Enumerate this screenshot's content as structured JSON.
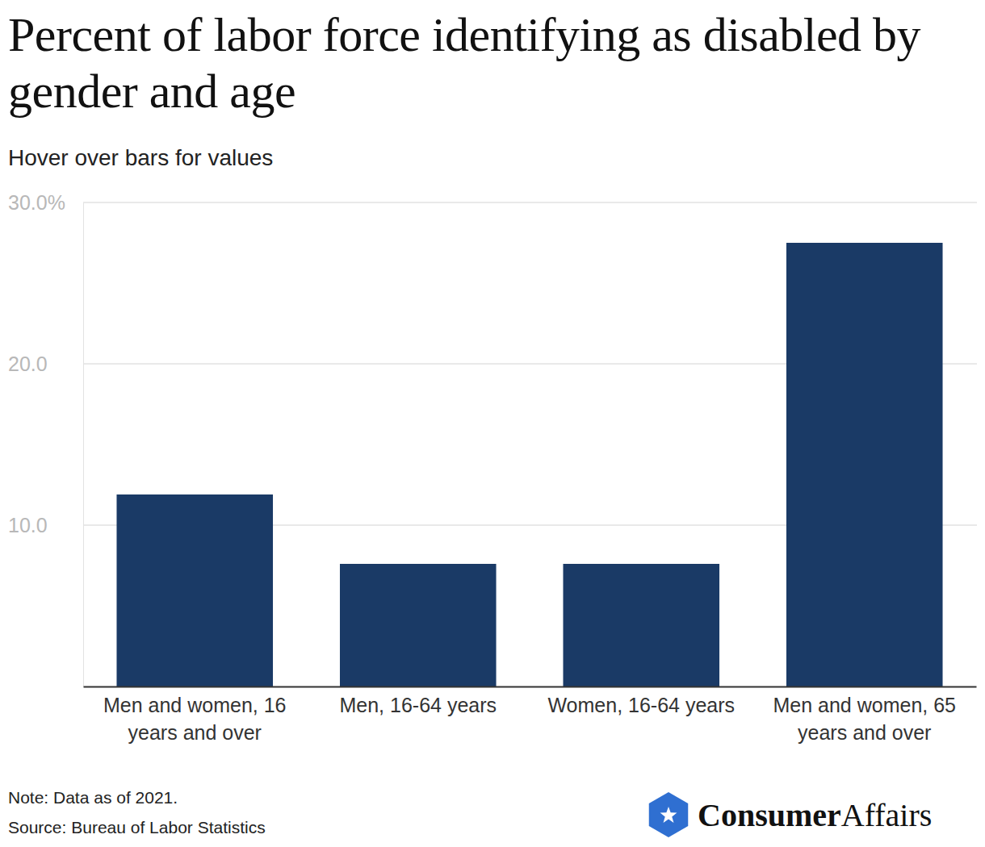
{
  "chart_data": {
    "type": "bar",
    "title": "Percent of labor force identifying as disabled by gender and age",
    "subtitle": "Hover over bars for values",
    "categories": [
      "Men and women, 16 years and over",
      "Men, 16-64 years",
      "Women, 16-64 years",
      "Men and women, 65 years and over"
    ],
    "values": [
      11.9,
      7.6,
      7.6,
      27.5
    ],
    "color": "#1a3a66",
    "ylim": [
      0,
      30
    ],
    "yticks": [
      {
        "value": 10,
        "label": "10.0"
      },
      {
        "value": 20,
        "label": "20.0"
      },
      {
        "value": 30,
        "label": "30.0%"
      }
    ],
    "grid": true,
    "note": "Note: Data as of 2021.",
    "source": "Source: Bureau of Labor Statistics",
    "logo": {
      "bold": "Consumer",
      "regular": "Affairs"
    }
  }
}
